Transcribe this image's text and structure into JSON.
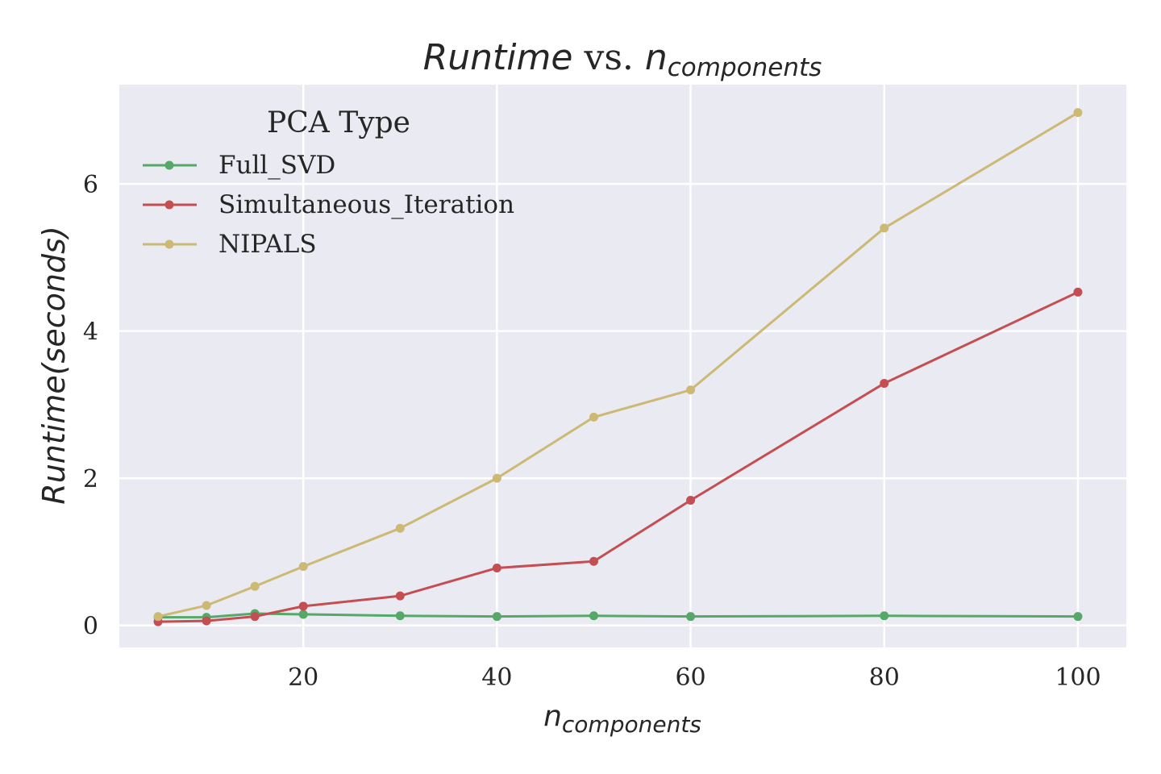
{
  "chart_data": {
    "type": "line",
    "title": {
      "italic_main": "Runtime",
      "plain_mid": " vs. ",
      "italic_n": "n",
      "subscript": "components"
    },
    "xlabel": {
      "italic_n": "n",
      "subscript": "components"
    },
    "ylabel": "Runtime(seconds)",
    "xlim": [
      1,
      105
    ],
    "ylim": [
      -0.3,
      7.35
    ],
    "xticks": [
      20,
      40,
      60,
      80,
      100
    ],
    "yticks": [
      0,
      2,
      4,
      6
    ],
    "grid": true,
    "legend": {
      "title": "PCA Type",
      "placement": "top-left"
    },
    "x": [
      5,
      10,
      15,
      20,
      30,
      40,
      50,
      60,
      80,
      100
    ],
    "series": [
      {
        "name": "Full_SVD",
        "color": "#55a868",
        "values": [
          0.11,
          0.11,
          0.16,
          0.15,
          0.13,
          0.12,
          0.13,
          0.12,
          0.13,
          0.12
        ]
      },
      {
        "name": "Simultaneous_Iteration",
        "color": "#c44e52",
        "values": [
          0.05,
          0.06,
          0.12,
          0.26,
          0.4,
          0.78,
          0.87,
          1.7,
          3.29,
          4.53
        ]
      },
      {
        "name": "NIPALS",
        "color": "#ccb974",
        "values": [
          0.12,
          0.27,
          0.53,
          0.8,
          1.32,
          2.0,
          2.83,
          3.2,
          5.4,
          6.97
        ]
      }
    ],
    "style": {
      "plot_bg": "#eaeaf2",
      "grid_color": "#ffffff",
      "text_color": "#262626"
    }
  }
}
